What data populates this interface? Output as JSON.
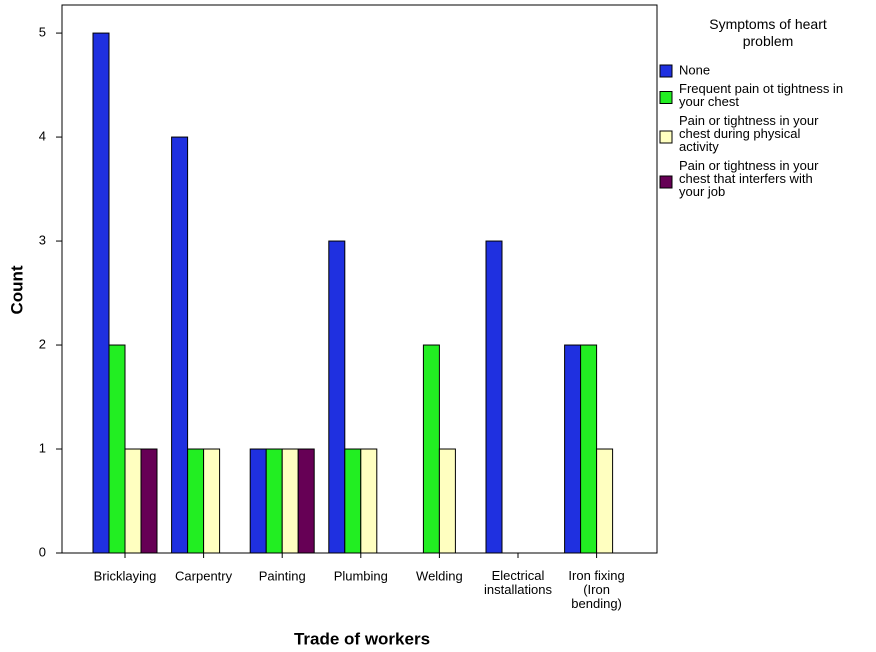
{
  "chart_data": {
    "type": "bar",
    "x_label": "Trade of workers",
    "y_label": "Count",
    "legend_title": "Symptoms of heart\nproblem",
    "categories": [
      "Bricklaying",
      "Carpentry",
      "Painting",
      "Plumbing",
      "Welding",
      "Electrical\ninstallations",
      "Iron fixing\n(Iron\nbending)"
    ],
    "series": [
      {
        "name": "None",
        "color": "#1f30e0",
        "values": [
          5,
          4,
          1,
          3,
          0,
          3,
          2
        ]
      },
      {
        "name": "Frequent pain ot tightness in\nyour chest",
        "color": "#22ee22",
        "values": [
          2,
          1,
          1,
          1,
          2,
          0,
          2
        ]
      },
      {
        "name": "Pain or tightness in your\nchest during physical\nactivity",
        "color": "#ffffc0",
        "values": [
          1,
          1,
          1,
          1,
          1,
          0,
          1
        ]
      },
      {
        "name": "Pain or tightness in your\nchest that interfers with\nyour job",
        "color": "#660055",
        "values": [
          1,
          0,
          1,
          0,
          0,
          0,
          0
        ]
      }
    ],
    "ylim": [
      0,
      5.27
    ],
    "yticks": [
      0,
      1,
      2,
      3,
      4,
      5
    ],
    "legend": "right"
  }
}
